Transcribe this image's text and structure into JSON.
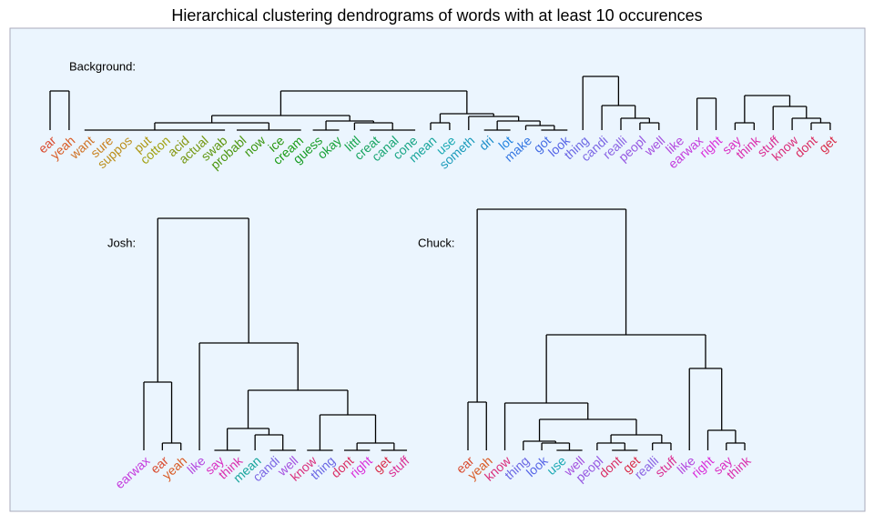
{
  "title": "Hierarchical clustering dendrograms of words with at least 10 occurences",
  "panels": [
    {
      "label": "Background:",
      "leaves": [
        {
          "text": "ear",
          "color": "hsl(10,70%,52%)"
        },
        {
          "text": "yeah",
          "color": "hsl(18,70%,50%)"
        },
        {
          "text": "want",
          "color": "hsl(27,70%,48%)"
        },
        {
          "text": "sure",
          "color": "hsl(35,75%,45%)"
        },
        {
          "text": "suppos",
          "color": "hsl(43,75%,42%)"
        },
        {
          "text": "put",
          "color": "hsl(51,80%,38%)"
        },
        {
          "text": "cotton",
          "color": "hsl(60,80%,35%)"
        },
        {
          "text": "acid",
          "color": "hsl(68,80%,33%)"
        },
        {
          "text": "actual",
          "color": "hsl(76,80%,33%)"
        },
        {
          "text": "swab",
          "color": "hsl(85,80%,33%)"
        },
        {
          "text": "probabl",
          "color": "hsl(93,80%,33%)"
        },
        {
          "text": "now",
          "color": "hsl(101,80%,33%)"
        },
        {
          "text": "ice",
          "color": "hsl(109,80%,33%)"
        },
        {
          "text": "cream",
          "color": "hsl(118,75%,35%)"
        },
        {
          "text": "guess",
          "color": "hsl(126,75%,35%)"
        },
        {
          "text": "okay",
          "color": "hsl(134,75%,36%)"
        },
        {
          "text": "littl",
          "color": "hsl(143,75%,37%)"
        },
        {
          "text": "creat",
          "color": "hsl(151,75%,37%)"
        },
        {
          "text": "canal",
          "color": "hsl(159,75%,37%)"
        },
        {
          "text": "cone",
          "color": "hsl(167,75%,37%)"
        },
        {
          "text": "mean",
          "color": "hsl(176,75%,37%)"
        },
        {
          "text": "use",
          "color": "hsl(184,75%,40%)"
        },
        {
          "text": "someth",
          "color": "hsl(192,75%,42%)"
        },
        {
          "text": "dri",
          "color": "hsl(200,75%,45%)"
        },
        {
          "text": "lot",
          "color": "hsl(209,75%,50%)"
        },
        {
          "text": "make",
          "color": "hsl(217,75%,55%)"
        },
        {
          "text": "got",
          "color": "hsl(225,75%,58%)"
        },
        {
          "text": "look",
          "color": "hsl(234,75%,62%)"
        },
        {
          "text": "thing",
          "color": "hsl(242,70%,65%)"
        },
        {
          "text": "candi",
          "color": "hsl(250,70%,65%)"
        },
        {
          "text": "realli",
          "color": "hsl(258,70%,65%)"
        },
        {
          "text": "peopl",
          "color": "hsl(267,70%,62%)"
        },
        {
          "text": "well",
          "color": "hsl(275,70%,60%)"
        },
        {
          "text": "like",
          "color": "hsl(283,70%,58%)"
        },
        {
          "text": "earwax",
          "color": "hsl(291,70%,55%)"
        },
        {
          "text": "right",
          "color": "hsl(300,70%,52%)"
        },
        {
          "text": "say",
          "color": "hsl(308,70%,52%)"
        },
        {
          "text": "think",
          "color": "hsl(316,70%,52%)"
        },
        {
          "text": "stuff",
          "color": "hsl(325,70%,52%)"
        },
        {
          "text": "know",
          "color": "hsl(333,70%,52%)"
        },
        {
          "text": "dont",
          "color": "hsl(341,70%,52%)"
        },
        {
          "text": "get",
          "color": "hsl(350,70%,52%)"
        }
      ]
    },
    {
      "label": "Josh:",
      "leaves": [
        {
          "text": "earwax",
          "color": "hsl(291,70%,55%)"
        },
        {
          "text": "ear",
          "color": "hsl(10,70%,52%)"
        },
        {
          "text": "yeah",
          "color": "hsl(18,70%,50%)"
        },
        {
          "text": "like",
          "color": "hsl(283,70%,58%)"
        },
        {
          "text": "say",
          "color": "hsl(308,70%,52%)"
        },
        {
          "text": "think",
          "color": "hsl(316,70%,52%)"
        },
        {
          "text": "mean",
          "color": "hsl(176,75%,37%)"
        },
        {
          "text": "candi",
          "color": "hsl(250,70%,65%)"
        },
        {
          "text": "well",
          "color": "hsl(275,70%,60%)"
        },
        {
          "text": "know",
          "color": "hsl(333,70%,52%)"
        },
        {
          "text": "thing",
          "color": "hsl(242,70%,65%)"
        },
        {
          "text": "dont",
          "color": "hsl(341,70%,52%)"
        },
        {
          "text": "right",
          "color": "hsl(300,70%,52%)"
        },
        {
          "text": "get",
          "color": "hsl(350,70%,52%)"
        },
        {
          "text": "stuff",
          "color": "hsl(325,70%,52%)"
        }
      ]
    },
    {
      "label": "Chuck:",
      "leaves": [
        {
          "text": "ear",
          "color": "hsl(10,70%,52%)"
        },
        {
          "text": "yeah",
          "color": "hsl(18,70%,50%)"
        },
        {
          "text": "know",
          "color": "hsl(333,70%,52%)"
        },
        {
          "text": "thing",
          "color": "hsl(242,70%,65%)"
        },
        {
          "text": "look",
          "color": "hsl(234,75%,62%)"
        },
        {
          "text": "use",
          "color": "hsl(184,75%,40%)"
        },
        {
          "text": "well",
          "color": "hsl(275,70%,60%)"
        },
        {
          "text": "peopl",
          "color": "hsl(267,70%,62%)"
        },
        {
          "text": "dont",
          "color": "hsl(341,70%,52%)"
        },
        {
          "text": "get",
          "color": "hsl(350,70%,52%)"
        },
        {
          "text": "realli",
          "color": "hsl(258,70%,65%)"
        },
        {
          "text": "stuff",
          "color": "hsl(325,70%,52%)"
        },
        {
          "text": "like",
          "color": "hsl(283,70%,58%)"
        },
        {
          "text": "right",
          "color": "hsl(300,70%,52%)"
        },
        {
          "text": "say",
          "color": "hsl(308,70%,52%)"
        },
        {
          "text": "think",
          "color": "hsl(316,70%,52%)"
        }
      ]
    }
  ]
}
